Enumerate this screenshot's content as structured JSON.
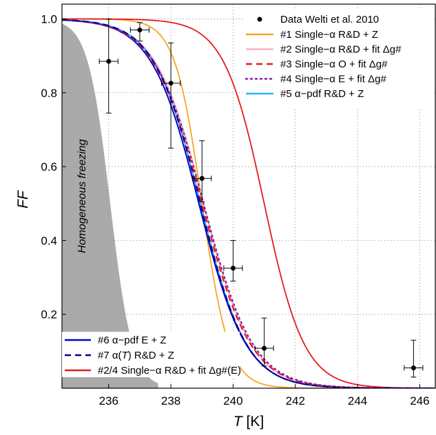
{
  "chart_data": {
    "type": "line",
    "xlabel_italic": "T",
    "xlabel_unit": " [K]",
    "ylabel": "FF",
    "xlim": [
      234.5,
      246.5
    ],
    "ylim": [
      0.0,
      1.04
    ],
    "x_ticks": [
      "236",
      "238",
      "240",
      "242",
      "244",
      "246"
    ],
    "y_ticks": [
      "0.2",
      "0.4",
      "0.6",
      "0.8",
      "1.0"
    ],
    "grid": true,
    "shaded_region_label": "Homogeneous freezing",
    "observations": {
      "name": "Data Welti et al. 2010",
      "points": [
        {
          "x": 236.0,
          "y": 0.885,
          "yerr_low": 0.745,
          "yerr_high": 1.0,
          "xerr": 0.3
        },
        {
          "x": 237.0,
          "y": 0.97,
          "yerr_low": 0.94,
          "yerr_high": 0.99,
          "xerr": 0.3
        },
        {
          "x": 238.0,
          "y": 0.826,
          "yerr_low": 0.65,
          "yerr_high": 0.935,
          "xerr": 0.3
        },
        {
          "x": 239.0,
          "y": 0.568,
          "yerr_low": 0.505,
          "yerr_high": 0.67,
          "xerr": 0.3
        },
        {
          "x": 240.0,
          "y": 0.325,
          "yerr_low": 0.29,
          "yerr_high": 0.4,
          "xerr": 0.3
        },
        {
          "x": 241.0,
          "y": 0.108,
          "yerr_low": 0.06,
          "yerr_high": 0.19,
          "xerr": 0.3
        },
        {
          "x": 245.8,
          "y": 0.055,
          "yerr_low": 0.03,
          "yerr_high": 0.13,
          "xerr": 0.3
        }
      ]
    },
    "series_top": [
      {
        "name": "#1 Single−α R&D + Z",
        "color": "#f5a623",
        "dash": "solid",
        "t50": 239.0,
        "k": 2.3
      },
      {
        "name": "#2 Single−α R&D + fit Δg#",
        "color": "#f6b3c8",
        "dash": "solid",
        "t50": 239.05,
        "k": 1.3
      },
      {
        "name": "#3 Single−α O + fit Δg#",
        "color": "#e41a1c",
        "dash": "dashed",
        "t50": 239.0,
        "k": 1.28
      },
      {
        "name": "#4 Single−α E + fit Δg#",
        "color": "#7b1fa2",
        "dash": "dotted",
        "t50": 239.05,
        "k": 1.26
      },
      {
        "name": "#5 α−pdf R&D + Z",
        "color": "#29b6f6",
        "dash": "solid",
        "t50": 238.95,
        "k": 1.35
      }
    ],
    "series_bottom": [
      {
        "name": "#6 α−pdf E + Z",
        "color": "#0000cc",
        "dash": "solid",
        "t50": 238.9,
        "k": 1.32
      },
      {
        "name_prefix": "#7 α(",
        "name_italic": "T",
        "name_suffix": ") R&D + Z",
        "color": "#000088",
        "dash": "dashed",
        "t50": 238.95,
        "k": 1.35
      },
      {
        "name": "#2/4 Single−α R&D + fit Δg#(E)",
        "color": "#e41a1c",
        "dash": "solid",
        "t50": 241.0,
        "k": 1.55
      }
    ]
  }
}
